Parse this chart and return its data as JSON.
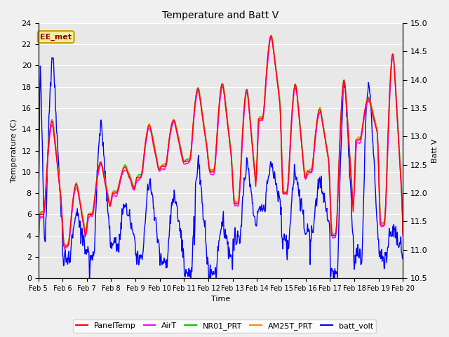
{
  "title": "Temperature and Batt V",
  "xlabel": "Time",
  "ylabel_left": "Temperature (C)",
  "ylabel_right": "Batt V",
  "ylim_left": [
    0,
    24
  ],
  "ylim_right": [
    10.5,
    15.0
  ],
  "yticks_left": [
    0,
    2,
    4,
    6,
    8,
    10,
    12,
    14,
    16,
    18,
    20,
    22,
    24
  ],
  "yticks_right": [
    10.5,
    11.0,
    11.5,
    12.0,
    12.5,
    13.0,
    13.5,
    14.0,
    14.5,
    15.0
  ],
  "xtick_labels": [
    "Feb 5",
    "Feb 6",
    "Feb 7",
    "Feb 8",
    "Feb 9",
    "Feb 10",
    "Feb 11",
    "Feb 12",
    "Feb 13",
    "Feb 14",
    "Feb 15",
    "Feb 16",
    "Feb 17",
    "Feb 18",
    "Feb 19",
    "Feb 20"
  ],
  "annotation_text": "EE_met",
  "annotation_box_facecolor": "#f5f0a0",
  "annotation_box_edgecolor": "#c8a000",
  "annotation_text_color": "#8b0000",
  "fig_facecolor": "#f0f0f0",
  "plot_facecolor": "#e8e8e8",
  "grid_color": "#ffffff",
  "series_PanelTemp_color": "#ff0000",
  "series_AirT_color": "#ff00ff",
  "series_NR01_PRT_color": "#00cc00",
  "series_AM25T_PRT_color": "#ff8800",
  "series_batt_volt_color": "#0000ff",
  "series_lw": 1.0,
  "legend_entries": [
    "PanelTemp",
    "AirT",
    "NR01_PRT",
    "AM25T_PRT",
    "batt_volt"
  ],
  "legend_colors": [
    "#ff0000",
    "#ff00ff",
    "#00cc00",
    "#ff8800",
    "#0000ff"
  ]
}
